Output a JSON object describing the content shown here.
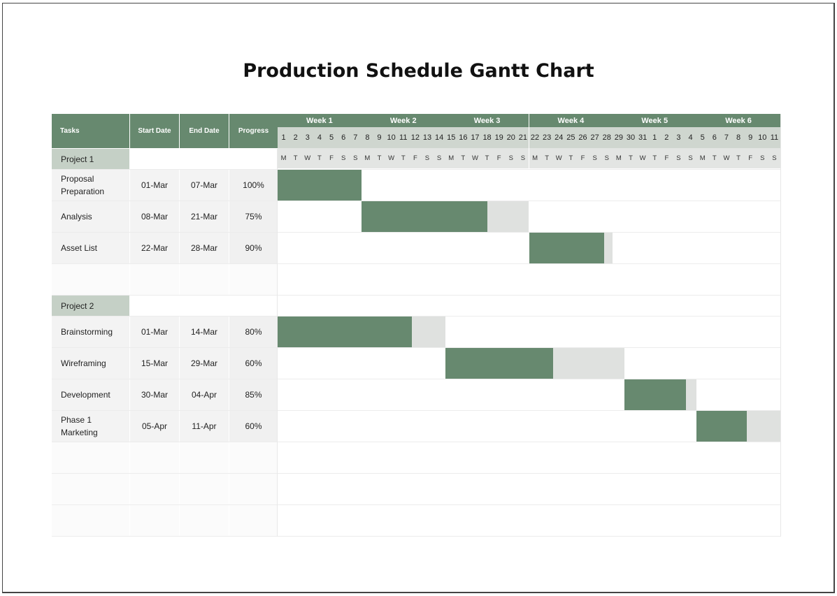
{
  "title": "Production Schedule Gantt Chart",
  "headers": {
    "tasks": "Tasks",
    "start": "Start Date",
    "end": "End Date",
    "progress": "Progress"
  },
  "weeks": [
    "Week 1",
    "Week 2",
    "Week 3",
    "Week 4",
    "Week 5",
    "Week 6"
  ],
  "day_numbers": [
    "1",
    "2",
    "3",
    "4",
    "5",
    "6",
    "7",
    "8",
    "9",
    "10",
    "11",
    "12",
    "13",
    "14",
    "15",
    "16",
    "17",
    "18",
    "19",
    "20",
    "21",
    "22",
    "23",
    "24",
    "25",
    "26",
    "27",
    "28",
    "29",
    "30",
    "31",
    "1",
    "2",
    "3",
    "4",
    "5",
    "6",
    "7",
    "8",
    "9",
    "10",
    "11"
  ],
  "day_letters": [
    "M",
    "T",
    "W",
    "T",
    "F",
    "S",
    "S",
    "M",
    "T",
    "W",
    "T",
    "F",
    "S",
    "S",
    "M",
    "T",
    "W",
    "T",
    "F",
    "S",
    "S",
    "M",
    "T",
    "W",
    "T",
    "F",
    "S",
    "S",
    "M",
    "T",
    "W",
    "T",
    "F",
    "S",
    "S",
    "M",
    "T",
    "W",
    "T",
    "F",
    "S",
    "S"
  ],
  "colors": {
    "header": "#67896f",
    "bar_done": "#67896f",
    "bar_remaining": "#dfe1df",
    "project_label": "#c5d0c6"
  },
  "rows": [
    {
      "type": "project",
      "name": "Project 1"
    },
    {
      "type": "task",
      "name": "Proposal Preparation",
      "start": "01-Mar",
      "end": "07-Mar",
      "progress": "100%",
      "start_day": 1,
      "end_day": 7,
      "progress_value": 1.0
    },
    {
      "type": "task",
      "name": "Analysis",
      "start": "08-Mar",
      "end": "21-Mar",
      "progress": "75%",
      "start_day": 8,
      "end_day": 21,
      "progress_value": 0.75
    },
    {
      "type": "task",
      "name": "Asset List",
      "start": "22-Mar",
      "end": "28-Mar",
      "progress": "90%",
      "start_day": 22,
      "end_day": 28,
      "progress_value": 0.9
    },
    {
      "type": "empty"
    },
    {
      "type": "project",
      "name": "Project 2"
    },
    {
      "type": "task",
      "name": "Brainstorming",
      "start": "01-Mar",
      "end": "14-Mar",
      "progress": "80%",
      "start_day": 1,
      "end_day": 14,
      "progress_value": 0.8
    },
    {
      "type": "task",
      "name": "Wireframing",
      "start": "15-Mar",
      "end": "29-Mar",
      "progress": "60%",
      "start_day": 15,
      "end_day": 29,
      "progress_value": 0.6
    },
    {
      "type": "task",
      "name": "Development",
      "start": "30-Mar",
      "end": "04-Apr",
      "progress": "85%",
      "start_day": 30,
      "end_day": 35,
      "progress_value": 0.85
    },
    {
      "type": "task",
      "name": "Phase 1 Marketing",
      "start": "05-Apr",
      "end": "11-Apr",
      "progress": "60%",
      "start_day": 36,
      "end_day": 42,
      "progress_value": 0.6
    },
    {
      "type": "empty"
    },
    {
      "type": "empty"
    },
    {
      "type": "empty"
    }
  ]
}
